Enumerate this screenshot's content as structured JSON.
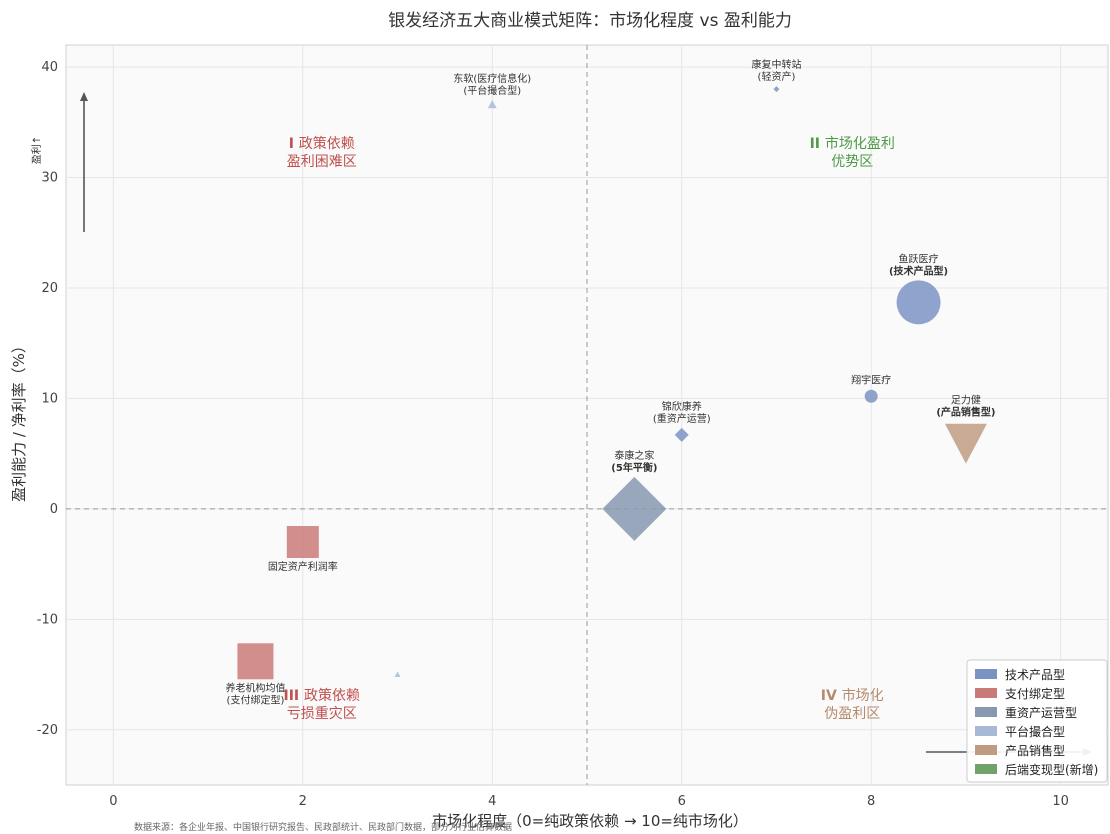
{
  "chart_data": {
    "type": "scatter",
    "title": "银发经济五大商业模式矩阵：市场化程度 vs 盈利能力",
    "xlabel": "市场化程度（0=纯政策依赖 → 10=纯市场化）",
    "ylabel": "盈利能力 / 净利率（%）",
    "xlim": [
      -0.5,
      10.5
    ],
    "ylim": [
      -25,
      42
    ],
    "xticks": [
      0,
      2,
      4,
      6,
      8,
      10
    ],
    "yticks": [
      -20,
      -10,
      0,
      10,
      20,
      30,
      40
    ],
    "grid": true,
    "divider_x": 5,
    "divider_y": 0,
    "arrow_y_label": "盈利↑",
    "legend_position": "bottom-right",
    "legend": [
      {
        "name": "技术产品型",
        "color": "#7b93c3"
      },
      {
        "name": "支付绑定型",
        "color": "#c97a78"
      },
      {
        "name": "重资产运营型",
        "color": "#8798b0"
      },
      {
        "name": "平台撮合型",
        "color": "#a8b9d8"
      },
      {
        "name": "产品销售型",
        "color": "#bf9b82"
      },
      {
        "name": "后端变现型(新增)",
        "color": "#6fa36a"
      }
    ],
    "quadrants": [
      {
        "roman": "I",
        "line1": "政策依赖",
        "line2": "盈利困难区",
        "color": "#c0504d",
        "x": 2.2,
        "y": 32.5
      },
      {
        "roman": "II",
        "line1": "市场化盈利",
        "line2": "优势区",
        "color": "#4e9a46",
        "x": 7.8,
        "y": 32.5
      },
      {
        "roman": "III",
        "line1": "政策依赖",
        "line2": "亏损重灾区",
        "color": "#c0504d",
        "x": 2.2,
        "y": -17.5
      },
      {
        "roman": "IV",
        "line1": "市场化",
        "line2": "伪盈利区",
        "color": "#b68b6c",
        "x": 7.8,
        "y": -17.5
      }
    ],
    "points": [
      {
        "name": "东软(医疗信息化)",
        "sub": "(平台撮合型)",
        "x": 4,
        "y": 36.6,
        "shape": "triangle-up",
        "size": 9,
        "color": "#a8b9d8"
      },
      {
        "name": "康复中转站",
        "sub": "(轻资产)",
        "x": 7,
        "y": 38,
        "shape": "diamond",
        "size": 6,
        "color": "#7b93c3"
      },
      {
        "name": "鱼跃医疗",
        "sub": "(技术产品型)",
        "x": 8.5,
        "y": 18.7,
        "shape": "circle",
        "size": 44,
        "color": "#7b93c3"
      },
      {
        "name": "翔宇医疗",
        "sub": "",
        "x": 8,
        "y": 10.2,
        "shape": "circle",
        "size": 13,
        "color": "#7b93c3"
      },
      {
        "name": "足力健",
        "sub": "(产品销售型)",
        "x": 9,
        "y": 6,
        "shape": "triangle-down",
        "size": 42,
        "color": "#bf9b82"
      },
      {
        "name": "锦欣康养",
        "sub": "(重资产运营)",
        "x": 6,
        "y": 6.7,
        "shape": "diamond",
        "size": 14,
        "color": "#7b93c3"
      },
      {
        "name": "泰康之家",
        "sub": "(5年平衡)",
        "x": 5.5,
        "y": 0,
        "shape": "diamond",
        "size": 64,
        "color": "#8798b0"
      },
      {
        "name": "固定资产利润率",
        "sub": "",
        "x": 2,
        "y": -3,
        "shape": "square",
        "size": 32,
        "color": "#c97a78"
      },
      {
        "name": "养老机构均值",
        "sub": "(支付绑定型)",
        "x": 1.5,
        "y": -13.8,
        "shape": "square",
        "size": 36,
        "color": "#c97a78"
      },
      {
        "name": "",
        "sub": "",
        "x": 3,
        "y": -15,
        "shape": "triangle-up",
        "size": 6,
        "color": "#a8b9d8"
      }
    ]
  },
  "source_note": "数据来源：各企业年报、中国银行研究报告、民政部统计、民政部门数据，部分为行业估算数据"
}
